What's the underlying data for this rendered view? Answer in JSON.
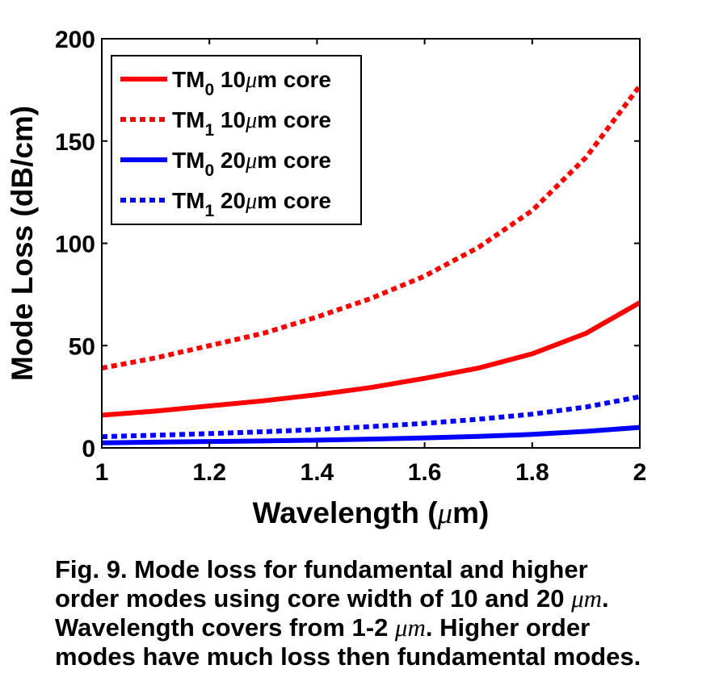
{
  "chart_data": {
    "type": "line",
    "xlabel_prefix": "Wavelength (",
    "xlabel_mu": "μ",
    "xlabel_suffix": "m)",
    "ylabel": "Mode Loss (dB/cm)",
    "xlim": [
      1,
      2
    ],
    "ylim": [
      0,
      200
    ],
    "xticks": [
      "1",
      "1.2",
      "1.4",
      "1.6",
      "1.8",
      "2"
    ],
    "yticks": [
      "0",
      "50",
      "100",
      "150",
      "200"
    ],
    "grid": false,
    "legend_position": "top-left",
    "x": [
      1.0,
      1.1,
      1.2,
      1.3,
      1.4,
      1.5,
      1.6,
      1.7,
      1.8,
      1.9,
      2.0
    ],
    "series": [
      {
        "mode": "TM",
        "sub": "0",
        "size": "10",
        "unit_mu": "μ",
        "unit_rest": "m core",
        "color": "#ff0000",
        "style": "solid",
        "values": [
          16,
          18,
          20.5,
          23,
          26,
          29.5,
          34,
          39,
          46,
          56,
          71
        ]
      },
      {
        "mode": "TM",
        "sub": "1",
        "size": "10",
        "unit_mu": "μ",
        "unit_rest": "m core",
        "color": "#ff0000",
        "style": "dotted",
        "values": [
          39,
          44,
          50,
          56,
          64,
          73,
          84,
          98,
          116,
          142,
          177
        ]
      },
      {
        "mode": "TM",
        "sub": "0",
        "size": "20",
        "unit_mu": "μ",
        "unit_rest": "m core",
        "color": "#0000ff",
        "style": "solid",
        "values": [
          2.5,
          2.8,
          3.1,
          3.4,
          3.8,
          4.3,
          4.9,
          5.6,
          6.6,
          8.1,
          10
        ]
      },
      {
        "mode": "TM",
        "sub": "1",
        "size": "20",
        "unit_mu": "μ",
        "unit_rest": "m core",
        "color": "#0000ff",
        "style": "dotted",
        "values": [
          5.5,
          6.2,
          7,
          7.9,
          9,
          10.4,
          12,
          14,
          16.5,
          20,
          25
        ]
      }
    ]
  },
  "caption": {
    "line1": "Fig. 9. Mode loss for fundamental and higher",
    "line2_a": "order modes using core width of 10 and 20 ",
    "mu1": "μm",
    "line2_b": ".",
    "line3_a": "Wavelength covers from 1-2 ",
    "mu2": "μm",
    "line3_b": ". Higher order",
    "line4": "modes have much loss then fundamental modes."
  }
}
